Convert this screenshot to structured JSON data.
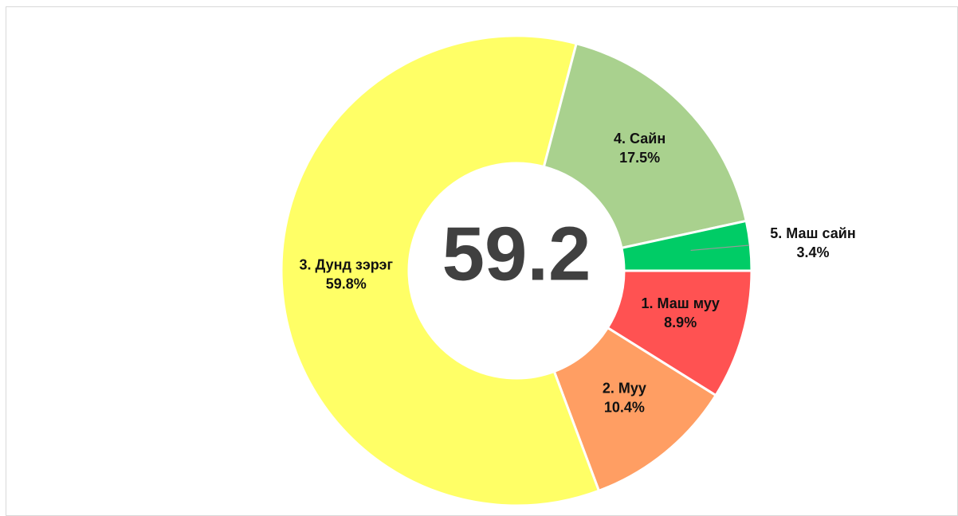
{
  "chart_data": {
    "type": "donut",
    "center_label": "59.2",
    "categories": [
      "1. Маш муу",
      "2. Муу",
      "3. Дунд зэрэг",
      "4. Сайн",
      "5. Маш сайн"
    ],
    "values": [
      8.9,
      10.4,
      59.8,
      17.5,
      3.4
    ],
    "value_labels": [
      "8.9%",
      "10.4%",
      "59.8%",
      "17.5%",
      "3.4%"
    ],
    "colors": [
      "#ff5252",
      "#ff9e63",
      "#ffff66",
      "#a9d18e",
      "#00cc66"
    ]
  }
}
